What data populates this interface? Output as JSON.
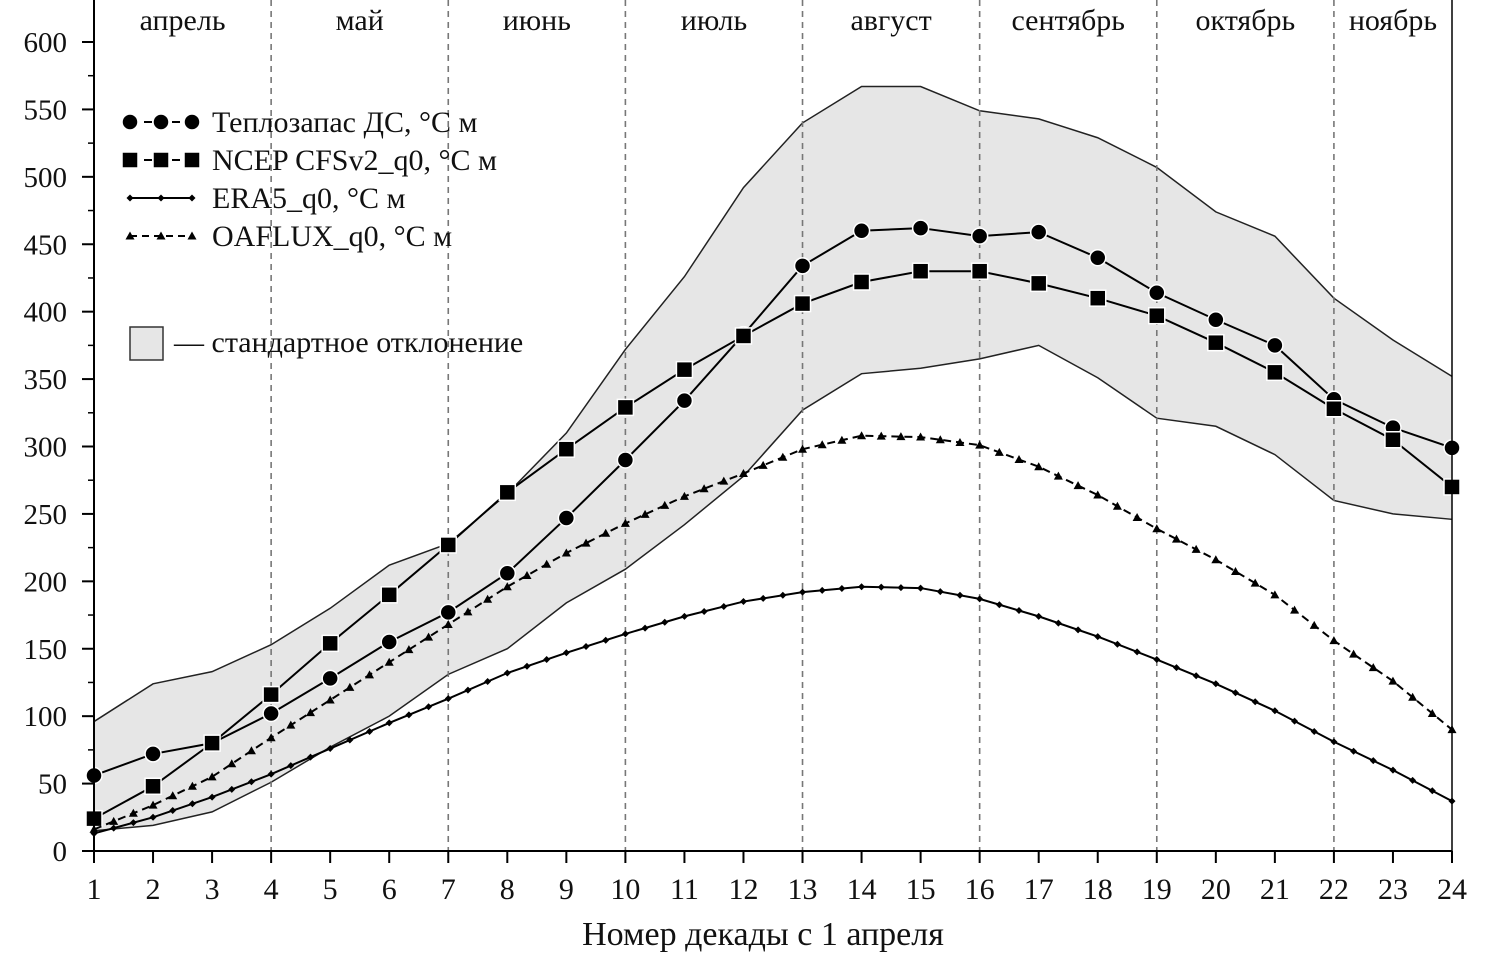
{
  "chart_data": {
    "type": "line",
    "xlabel": "Номер декады с 1 апреля",
    "ylabel": "",
    "xlim": [
      1,
      24
    ],
    "ylim": [
      0,
      600
    ],
    "x": [
      1,
      2,
      3,
      4,
      5,
      6,
      7,
      8,
      9,
      10,
      11,
      12,
      13,
      14,
      15,
      16,
      17,
      18,
      19,
      20,
      21,
      22,
      23,
      24
    ],
    "yticks": [
      0,
      50,
      100,
      150,
      200,
      250,
      300,
      350,
      400,
      450,
      500,
      550,
      600
    ],
    "months": [
      {
        "label": "апрель",
        "from": 1,
        "to": 4
      },
      {
        "label": "май",
        "from": 4,
        "to": 7
      },
      {
        "label": "июнь",
        "from": 7,
        "to": 10
      },
      {
        "label": "июль",
        "from": 10,
        "to": 13
      },
      {
        "label": "август",
        "from": 13,
        "to": 16
      },
      {
        "label": "сентябрь",
        "from": 16,
        "to": 19
      },
      {
        "label": "октябрь",
        "from": 19,
        "to": 22
      },
      {
        "label": "ноябрь",
        "from": 22,
        "to": 24
      }
    ],
    "std_band": {
      "label": "— стандартное отклонение",
      "upper": [
        96,
        124,
        133,
        153,
        180,
        212,
        228,
        265,
        310,
        372,
        426,
        492,
        540,
        567,
        567,
        549,
        543,
        529,
        507,
        474,
        456,
        410,
        379,
        352
      ],
      "lower": [
        15,
        19,
        29,
        51,
        77,
        100,
        131,
        150,
        184,
        209,
        242,
        278,
        327,
        354,
        358,
        365,
        375,
        351,
        321,
        315,
        294,
        260,
        250,
        246
      ],
      "color": "#e6e6e6"
    },
    "series": [
      {
        "name": "Теплозапас ДС, °С м",
        "marker": "circle",
        "values": [
          56,
          72,
          80,
          102,
          128,
          155,
          177,
          206,
          247,
          290,
          334,
          383,
          434,
          460,
          462,
          456,
          459,
          440,
          414,
          394,
          375,
          335,
          314,
          299
        ]
      },
      {
        "name": "NCEP CFSv2_q0, °С м",
        "marker": "square",
        "values": [
          24,
          48,
          80,
          116,
          154,
          190,
          227,
          266,
          298,
          329,
          357,
          382,
          406,
          422,
          430,
          430,
          421,
          410,
          397,
          377,
          355,
          328,
          305,
          270
        ]
      },
      {
        "name": "ERA5_q0, °С м",
        "marker": "diamond",
        "values": [
          13,
          25,
          40,
          57,
          76,
          95,
          113,
          132,
          147,
          161,
          174,
          185,
          192,
          196,
          195,
          187,
          174,
          159,
          142,
          124,
          104,
          81,
          60,
          37
        ]
      },
      {
        "name": "OAFLUX_q0, °С м",
        "marker": "triangle",
        "values": [
          16,
          34,
          55,
          84,
          112,
          140,
          168,
          196,
          221,
          243,
          263,
          280,
          298,
          308,
          307,
          301,
          285,
          264,
          239,
          216,
          190,
          156,
          126,
          90
        ]
      }
    ]
  }
}
